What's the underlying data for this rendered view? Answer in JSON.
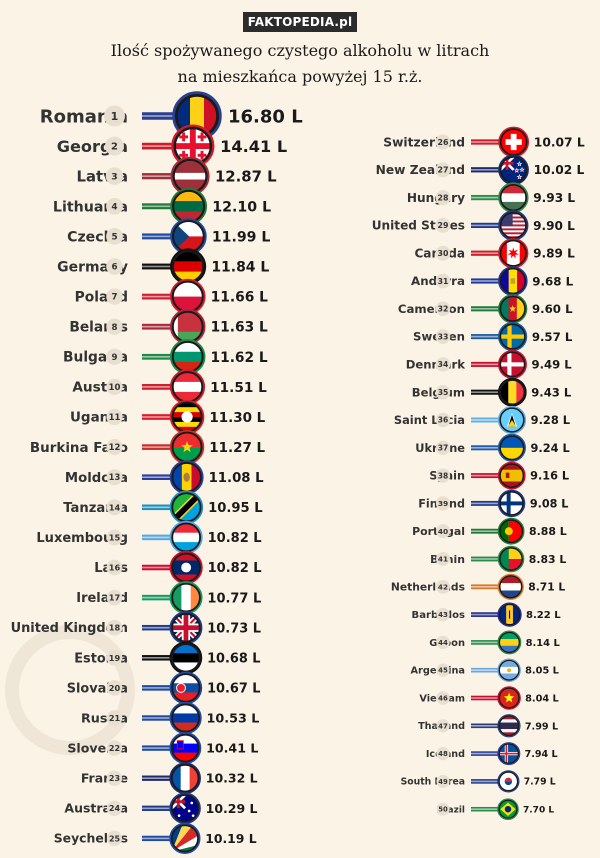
{
  "watermark": "FAKTOPEDIA.pl",
  "title_line1": "Ilość spożywanego czystego alkoholu w litrach",
  "title_line2": "na mieszkańca powyżej 15 r.ż.",
  "chart_data": {
    "type": "bar",
    "unit": "L",
    "categories": [
      "Romania",
      "Georgia",
      "Latvia",
      "Lithuania",
      "Czechia",
      "Germany",
      "Poland",
      "Belarus",
      "Bulgaria",
      "Austria",
      "Uganda",
      "Burkina Faso",
      "Moldova",
      "Tanzania",
      "Luxembourg",
      "Laos",
      "Ireland",
      "United Kingdom",
      "Estonia",
      "Slovakia",
      "Russia",
      "Slovenia",
      "France",
      "Australia",
      "Seychelles",
      "Switzerland",
      "New Zealand",
      "Hungary",
      "United States",
      "Canada",
      "Andorra",
      "Cameroon",
      "Sweden",
      "Denmark",
      "Belgium",
      "Saint Lucia",
      "Ukraine",
      "Spain",
      "Finland",
      "Portugal",
      "Benin",
      "Netherlands",
      "Barbados",
      "Gabon",
      "Argentina",
      "Vietnam",
      "Thailand",
      "Iceland",
      "South Korea",
      "Brazil"
    ],
    "ranks": [
      1,
      2,
      3,
      4,
      5,
      6,
      7,
      8,
      9,
      10,
      11,
      12,
      13,
      14,
      15,
      16,
      17,
      18,
      19,
      20,
      21,
      22,
      23,
      24,
      25,
      26,
      27,
      28,
      29,
      30,
      31,
      32,
      33,
      34,
      35,
      36,
      37,
      38,
      39,
      40,
      41,
      42,
      43,
      44,
      45,
      46,
      47,
      48,
      49,
      50
    ],
    "values": [
      16.8,
      14.41,
      12.87,
      12.1,
      11.99,
      11.84,
      11.66,
      11.63,
      11.62,
      11.51,
      11.3,
      11.27,
      11.08,
      10.95,
      10.82,
      10.82,
      10.77,
      10.73,
      10.68,
      10.67,
      10.53,
      10.41,
      10.32,
      10.29,
      10.19,
      10.07,
      10.02,
      9.93,
      9.9,
      9.89,
      9.68,
      9.6,
      9.57,
      9.49,
      9.43,
      9.28,
      9.24,
      9.16,
      9.08,
      8.88,
      8.83,
      8.71,
      8.22,
      8.14,
      8.05,
      8.04,
      7.99,
      7.94,
      7.79,
      7.7
    ],
    "labels": [
      "16.80 L",
      "14.41 L",
      "12.87 L",
      "12.10 L",
      "11.99 L",
      "11.84 L",
      "11.66 L",
      "11.63 L",
      "11.62 L",
      "11.51 L",
      "11.30 L",
      "11.27 L",
      "11.08 L",
      "10.95 L",
      "10.82 L",
      "10.82 L",
      "10.77 L",
      "10.73 L",
      "10.68 L",
      "10.67 L",
      "10.53 L",
      "10.41 L",
      "10.32 L",
      "10.29 L",
      "10.19 L",
      "10.07 L",
      "10.02 L",
      "9.93 L",
      "9.90 L",
      "9.89 L",
      "9.68 L",
      "9.60 L",
      "9.57 L",
      "9.49 L",
      "9.43 L",
      "9.28 L",
      "9.24 L",
      "9.16 L",
      "9.08 L",
      "8.88 L",
      "8.83 L",
      "8.71 L",
      "8.22 L",
      "8.14 L",
      "8.05 L",
      "8.04 L",
      "7.99 L",
      "7.94 L",
      "7.79 L",
      "7.70 L"
    ],
    "bar_colors": [
      "#2a3f8f",
      "#cc1d2b",
      "#9e3039",
      "#1f7a3a",
      "#1f4aa0",
      "#111111",
      "#cc2030",
      "#a82a3a",
      "#1f8a4a",
      "#cc1d2b",
      "#d81e2a",
      "#c7302a",
      "#2b3f9a",
      "#1e90ba",
      "#56a6e0",
      "#c8102e",
      "#169b62",
      "#1e3a8a",
      "#111111",
      "#1f4aa0",
      "#1f4aa0",
      "#1f4aa0",
      "#1f2a6e",
      "#1f3a8a",
      "#1f4aa0",
      "#cc1d2b",
      "#1b2b6b",
      "#2a8a4a",
      "#1e3a8a",
      "#cc1d2b",
      "#1f3a9a",
      "#1f7a3a",
      "#1f5aa0",
      "#c8102e",
      "#111111",
      "#62b0e8",
      "#1f5aa8",
      "#c8102e",
      "#1f3a8a",
      "#1f7a3a",
      "#2a8a4a",
      "#d9782a",
      "#1f2a8a",
      "#2a8a4a",
      "#6aa6e0",
      "#c8102e",
      "#2a3f7a",
      "#2a3f9a",
      "#1f3a8a",
      "#2a8a4a"
    ],
    "flag_icons": [
      "romania-flag-icon",
      "georgia-flag-icon",
      "latvia-flag-icon",
      "lithuania-flag-icon",
      "czechia-flag-icon",
      "germany-flag-icon",
      "poland-flag-icon",
      "belarus-flag-icon",
      "bulgaria-flag-icon",
      "austria-flag-icon",
      "uganda-flag-icon",
      "burkina-faso-flag-icon",
      "moldova-flag-icon",
      "tanzania-flag-icon",
      "luxembourg-flag-icon",
      "laos-flag-icon",
      "ireland-flag-icon",
      "united-kingdom-flag-icon",
      "estonia-flag-icon",
      "slovakia-flag-icon",
      "russia-flag-icon",
      "slovenia-flag-icon",
      "france-flag-icon",
      "australia-flag-icon",
      "seychelles-flag-icon",
      "switzerland-flag-icon",
      "new-zealand-flag-icon",
      "hungary-flag-icon",
      "united-states-flag-icon",
      "canada-flag-icon",
      "andorra-flag-icon",
      "cameroon-flag-icon",
      "sweden-flag-icon",
      "denmark-flag-icon",
      "belgium-flag-icon",
      "saint-lucia-flag-icon",
      "ukraine-flag-icon",
      "spain-flag-icon",
      "finland-flag-icon",
      "portugal-flag-icon",
      "benin-flag-icon",
      "netherlands-flag-icon",
      "barbados-flag-icon",
      "gabon-flag-icon",
      "argentina-flag-icon",
      "vietnam-flag-icon",
      "thailand-flag-icon",
      "iceland-flag-icon",
      "south-korea-flag-icon",
      "brazil-flag-icon"
    ],
    "legend": "none",
    "grid": false
  }
}
